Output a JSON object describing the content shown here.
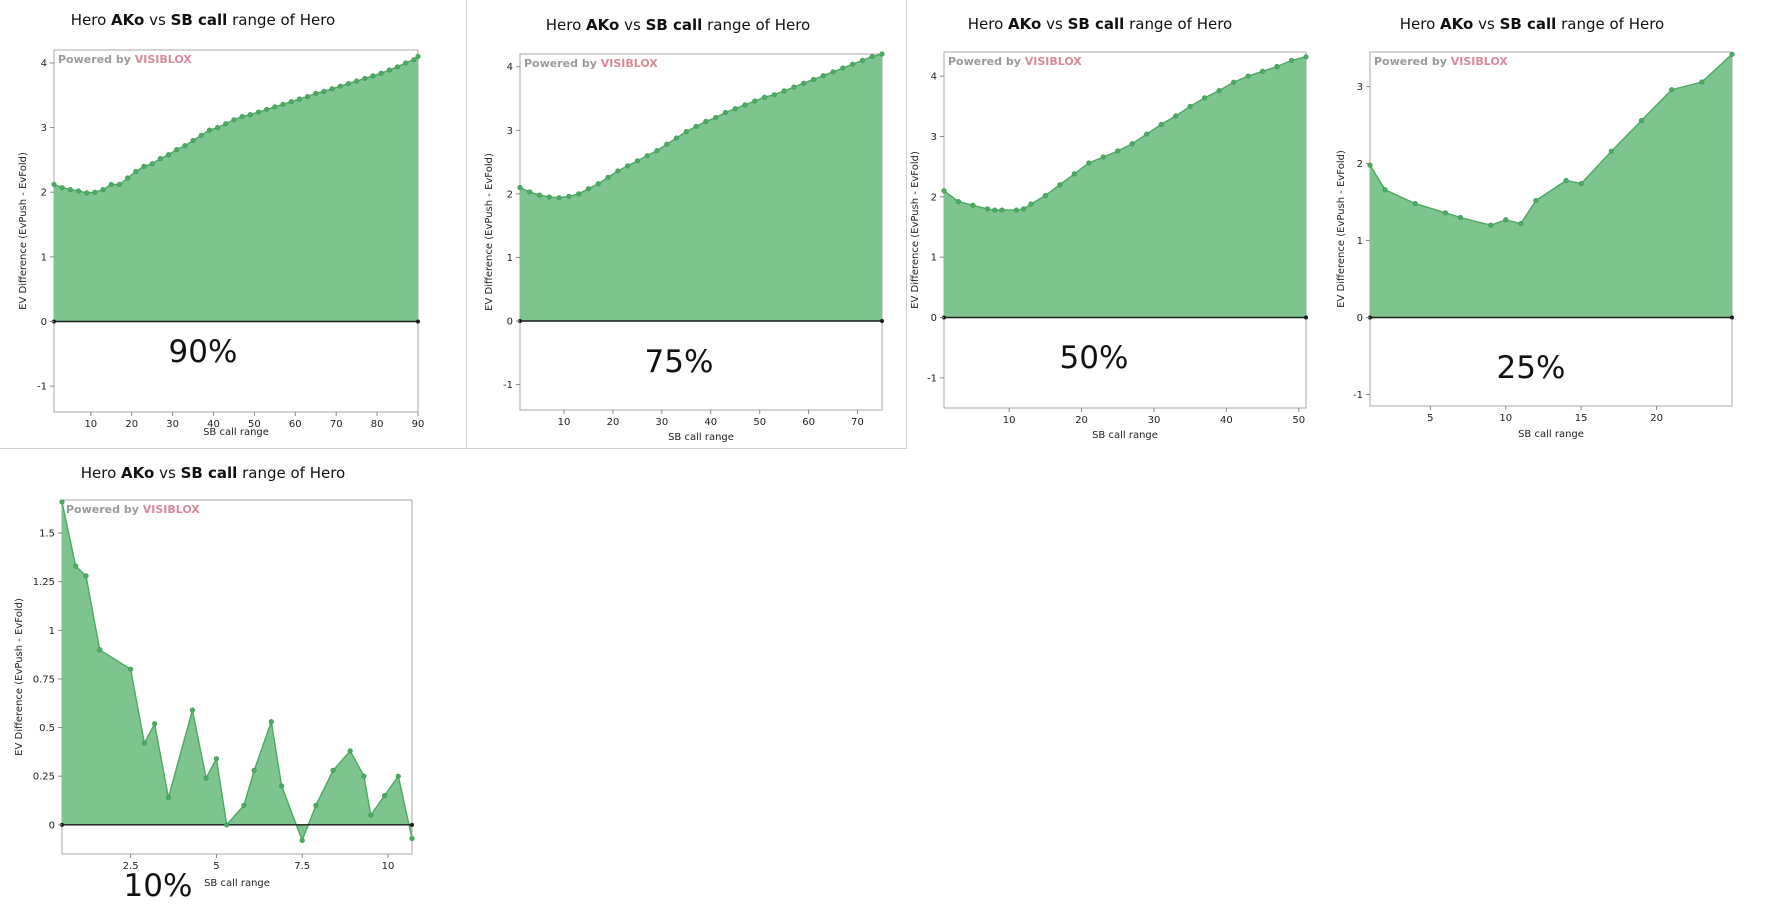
{
  "chart_data": [
    {
      "type": "area",
      "title_parts": [
        "Hero ",
        "AKo",
        " vs ",
        "SB call",
        " range of Hero"
      ],
      "xlabel": "SB call range",
      "ylabel": "EV Difference (EvPush - EvFold)",
      "brand": [
        "Powered by ",
        "VISIBLOX"
      ],
      "percent_label": "90%",
      "xlim": [
        1,
        90
      ],
      "ylim": [
        -1.4,
        4.2
      ],
      "xticks": [
        10,
        20,
        30,
        40,
        50,
        60,
        70,
        80,
        90
      ],
      "yticks": [
        -1,
        0,
        1,
        2,
        3,
        4
      ],
      "ytick_labels": [
        "-1",
        "0",
        "1",
        "2",
        "3",
        "4"
      ],
      "fill_color": "#7dc48f",
      "line_color": "#4caa62",
      "x": [
        1,
        3,
        5,
        7,
        9,
        11,
        13,
        15,
        17,
        19,
        21,
        23,
        25,
        27,
        29,
        31,
        33,
        35,
        37,
        39,
        41,
        43,
        45,
        47,
        49,
        51,
        53,
        55,
        57,
        59,
        61,
        63,
        65,
        67,
        69,
        71,
        73,
        75,
        77,
        79,
        81,
        83,
        85,
        87,
        89,
        90
      ],
      "values": [
        2.12,
        2.07,
        2.04,
        2.02,
        1.99,
        2.0,
        2.04,
        2.12,
        2.12,
        2.22,
        2.32,
        2.4,
        2.44,
        2.52,
        2.58,
        2.66,
        2.72,
        2.8,
        2.88,
        2.96,
        3.0,
        3.06,
        3.12,
        3.17,
        3.2,
        3.24,
        3.28,
        3.32,
        3.36,
        3.4,
        3.44,
        3.48,
        3.53,
        3.56,
        3.6,
        3.64,
        3.68,
        3.72,
        3.76,
        3.8,
        3.84,
        3.89,
        3.94,
        4.0,
        4.05,
        4.1
      ]
    },
    {
      "type": "area",
      "title_parts": [
        "Hero ",
        "AKo",
        " vs ",
        "SB call",
        " range of Hero"
      ],
      "xlabel": "SB call range",
      "ylabel": "EV Difference (EvPush - EvFold)",
      "brand": [
        "Powered by ",
        "VISIBLOX"
      ],
      "percent_label": "75%",
      "xlim": [
        1,
        75
      ],
      "ylim": [
        -1.4,
        4.2
      ],
      "xticks": [
        10,
        20,
        30,
        40,
        50,
        60,
        70
      ],
      "yticks": [
        -1,
        0,
        1,
        2,
        3,
        4
      ],
      "ytick_labels": [
        "-1",
        "0",
        "1",
        "2",
        "3",
        "4"
      ],
      "fill_color": "#7dc48f",
      "line_color": "#4caa62",
      "x": [
        1,
        3,
        5,
        7,
        9,
        11,
        13,
        15,
        17,
        19,
        21,
        23,
        25,
        27,
        29,
        31,
        33,
        35,
        37,
        39,
        41,
        43,
        45,
        47,
        49,
        51,
        53,
        55,
        57,
        59,
        61,
        63,
        65,
        67,
        69,
        71,
        73,
        75
      ],
      "values": [
        2.1,
        2.03,
        1.98,
        1.95,
        1.94,
        1.96,
        2.0,
        2.08,
        2.16,
        2.26,
        2.36,
        2.44,
        2.52,
        2.6,
        2.68,
        2.78,
        2.88,
        2.98,
        3.06,
        3.14,
        3.2,
        3.28,
        3.34,
        3.4,
        3.46,
        3.52,
        3.56,
        3.62,
        3.68,
        3.74,
        3.8,
        3.86,
        3.92,
        3.98,
        4.04,
        4.1,
        4.16,
        4.2
      ]
    },
    {
      "type": "area",
      "title_parts": [
        "Hero ",
        "AKo",
        " vs ",
        "SB call",
        " range of Hero"
      ],
      "xlabel": "SB call range",
      "ylabel": "EV Difference (EvPush - EvFold)",
      "brand": [
        "Powered by ",
        "VISIBLOX"
      ],
      "percent_label": "50%",
      "xlim": [
        1,
        51
      ],
      "ylim": [
        -1.5,
        4.4
      ],
      "xticks": [
        10,
        20,
        30,
        40,
        50
      ],
      "yticks": [
        -1,
        0,
        1,
        2,
        3,
        4
      ],
      "ytick_labels": [
        "-1",
        "0",
        "1",
        "2",
        "3",
        "4"
      ],
      "fill_color": "#7dc48f",
      "line_color": "#4caa62",
      "x": [
        1,
        3,
        5,
        7,
        8,
        9,
        11,
        12,
        13,
        15,
        17,
        19,
        21,
        23,
        25,
        27,
        29,
        31,
        33,
        35,
        37,
        39,
        41,
        43,
        45,
        47,
        49,
        51
      ],
      "values": [
        2.1,
        1.92,
        1.86,
        1.8,
        1.78,
        1.78,
        1.78,
        1.8,
        1.88,
        2.02,
        2.2,
        2.38,
        2.56,
        2.66,
        2.76,
        2.88,
        3.04,
        3.2,
        3.34,
        3.5,
        3.64,
        3.76,
        3.9,
        4.0,
        4.08,
        4.16,
        4.26,
        4.32
      ]
    },
    {
      "type": "area",
      "title_parts": [
        "Hero ",
        "AKo",
        " vs ",
        "SB call",
        " range of Hero"
      ],
      "xlabel": "SB call range",
      "ylabel": "EV Difference (EvPush - EvFold)",
      "brand": [
        "Powered by ",
        "VISIBLOX"
      ],
      "percent_label": "25%",
      "xlim": [
        1,
        25
      ],
      "ylim": [
        -1.15,
        3.45
      ],
      "xticks": [
        5,
        10,
        15,
        20
      ],
      "yticks": [
        -1,
        0,
        1,
        2,
        3
      ],
      "ytick_labels": [
        "-1",
        "0",
        "1",
        "2",
        "3"
      ],
      "fill_color": "#7dc48f",
      "line_color": "#4caa62",
      "x": [
        1,
        2,
        4,
        6,
        7,
        9,
        10,
        11,
        12,
        14,
        15,
        17,
        19,
        21,
        23,
        25
      ],
      "values": [
        1.98,
        1.66,
        1.48,
        1.36,
        1.3,
        1.2,
        1.27,
        1.22,
        1.52,
        1.78,
        1.74,
        2.16,
        2.56,
        2.96,
        3.06,
        3.42
      ]
    },
    {
      "type": "area",
      "title_parts": [
        "Hero ",
        "AKo",
        " vs ",
        "SB call",
        " range of Hero"
      ],
      "xlabel": "SB call range",
      "ylabel": "EV Difference (EvPush - EvFold)",
      "brand": [
        "Powered by ",
        "VISIBLOX"
      ],
      "percent_label": "10%",
      "xlim": [
        0.5,
        10.7
      ],
      "ylim": [
        -0.15,
        1.67
      ],
      "xticks": [
        2.5,
        5,
        7.5,
        10
      ],
      "xtick_labels": [
        "2.5",
        "5",
        "7.5",
        "10"
      ],
      "yticks": [
        0,
        0.25,
        0.5,
        0.75,
        1,
        1.25,
        1.5
      ],
      "ytick_labels": [
        "0",
        "0.25",
        "0.5",
        "0.75",
        "1",
        "1.25",
        "1.5"
      ],
      "fill_color": "#7dc48f",
      "line_color": "#4caa62",
      "x": [
        0.5,
        0.9,
        1.2,
        1.6,
        2.5,
        2.9,
        3.2,
        3.6,
        4.3,
        4.7,
        5.0,
        5.3,
        5.8,
        6.1,
        6.6,
        6.9,
        7.5,
        7.9,
        8.4,
        8.9,
        9.3,
        9.5,
        9.9,
        10.3,
        10.7
      ],
      "values": [
        1.66,
        1.33,
        1.28,
        0.9,
        0.8,
        0.42,
        0.52,
        0.14,
        0.59,
        0.24,
        0.34,
        0.0,
        0.1,
        0.28,
        0.53,
        0.2,
        -0.08,
        0.1,
        0.28,
        0.38,
        0.25,
        0.05,
        0.15,
        0.25,
        -0.07
      ]
    }
  ]
}
